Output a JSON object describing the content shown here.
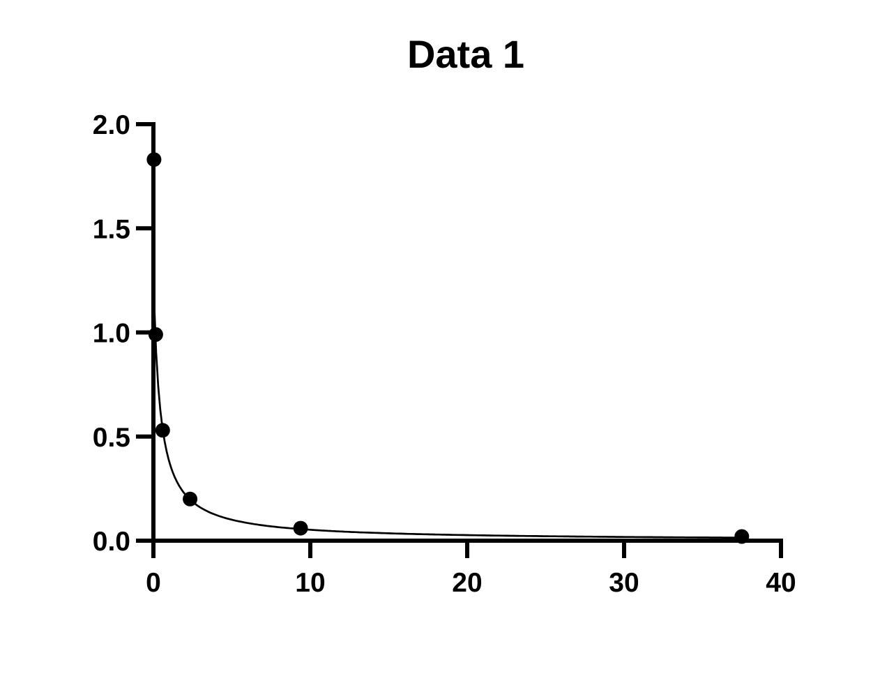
{
  "chart_data": {
    "type": "scatter",
    "title": "Data 1",
    "x": [
      0.04,
      0.15,
      0.59,
      2.34,
      9.38,
      37.5
    ],
    "y": [
      1.83,
      0.99,
      0.53,
      0.2,
      0.06,
      0.02
    ],
    "series": [
      {
        "name": "Data 1",
        "marker": "filled-circle",
        "marker_color": "#000000"
      }
    ],
    "fit_curve": {
      "description": "hyperbolic decay y = a / (x + b)",
      "a": 0.546,
      "b": 0.43,
      "x_range": [
        0.04,
        37.5
      ],
      "color": "#000000"
    },
    "xlabel": "",
    "ylabel": "",
    "xlim": [
      0,
      40
    ],
    "ylim": [
      0.0,
      2.0
    ],
    "x_ticks": [
      0,
      10,
      20,
      30,
      40
    ],
    "x_tick_labels": [
      "0",
      "10",
      "20",
      "30",
      "40"
    ],
    "y_ticks": [
      0.0,
      0.5,
      1.0,
      1.5,
      2.0
    ],
    "y_tick_labels": [
      "0.0",
      "0.5",
      "1.0",
      "1.5",
      "2.0"
    ],
    "grid": false,
    "legend": null,
    "axis_color": "#000000",
    "background_color": "#ffffff"
  }
}
